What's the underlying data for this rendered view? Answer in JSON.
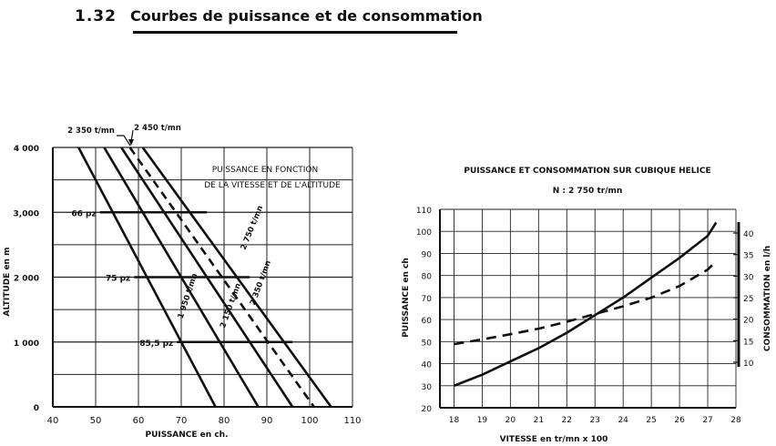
{
  "header": {
    "section_number": "1.32",
    "title": "Courbes de puissance et de consommation"
  },
  "chart_data": [
    {
      "type": "line",
      "title_lines": [
        "PUISSANCE EN FONCTION",
        "DE LA VITESSE ET DE L'ALTITUDE"
      ],
      "xlabel": "PUISSANCE en ch.",
      "ylabel": "ALTITUDE en m",
      "xlim": [
        40,
        110
      ],
      "ylim": [
        0,
        4000
      ],
      "x_ticks": [
        40,
        50,
        60,
        70,
        80,
        90,
        100,
        110
      ],
      "y_ticks": [
        0,
        1000,
        2000,
        3000,
        4000
      ],
      "y_tick_labels": [
        "0",
        "1 000",
        "2 000",
        "3,000",
        "4 000"
      ],
      "grid": true,
      "series": [
        {
          "name": "1 950 t/mn",
          "style": "solid",
          "points": [
            [
              46,
              4000
            ],
            [
              78,
              0
            ]
          ]
        },
        {
          "name": "2 150 t/mn",
          "style": "solid",
          "points": [
            [
              52,
              4000
            ],
            [
              88,
              0
            ]
          ]
        },
        {
          "name": "2 350 t/mn",
          "style": "solid",
          "points": [
            [
              56,
              4000
            ],
            [
              96,
              0
            ]
          ]
        },
        {
          "name": "2 450 t/mn",
          "style": "dashed",
          "points": [
            [
              58,
              4000
            ],
            [
              101,
              0
            ]
          ]
        },
        {
          "name": "2 750 t/mn",
          "style": "solid",
          "points": [
            [
              61,
              4000
            ],
            [
              105,
              0
            ]
          ]
        }
      ],
      "manifold_pressures": [
        {
          "label": "66 pz",
          "altitude": 3000,
          "x_range": [
            51,
            76
          ]
        },
        {
          "label": "75 pz",
          "altitude": 2000,
          "x_range": [
            59,
            86
          ]
        },
        {
          "label": "85,5 pz",
          "altitude": 1000,
          "x_range": [
            69,
            96
          ]
        }
      ],
      "top_labels": [
        {
          "text": "2 350 t/mn"
        },
        {
          "text": "2 450 t/mn"
        }
      ]
    },
    {
      "type": "line",
      "title": "PUISSANCE ET CONSOMMATION SUR CUBIQUE HELICE",
      "subtitle": "N : 2 750 tr/mn",
      "xlabel": "VITESSE en tr/mn x 100",
      "ylabel": "PUISSANCE en ch",
      "y2label": "CONSOMMATION en l/h",
      "xlim": [
        17.5,
        28
      ],
      "ylim": [
        20,
        110
      ],
      "y2lim": [
        7,
        43
      ],
      "x_ticks": [
        18,
        19,
        20,
        21,
        22,
        23,
        24,
        25,
        26,
        27,
        28
      ],
      "y_ticks": [
        20,
        30,
        40,
        50,
        60,
        70,
        80,
        90,
        100,
        110
      ],
      "y2_ticks": [
        10,
        15,
        20,
        25,
        30,
        35,
        40
      ],
      "grid": true,
      "series": [
        {
          "name": "Puissance",
          "axis": "left",
          "style": "solid",
          "x": [
            18,
            19,
            20,
            21,
            22,
            23,
            24,
            25,
            26,
            27,
            27.3
          ],
          "y": [
            30,
            35,
            41,
            47,
            54,
            62,
            70,
            79,
            88,
            98,
            104
          ]
        },
        {
          "name": "Consommation",
          "axis": "right",
          "style": "dashed",
          "x": [
            18,
            19,
            20,
            21,
            22,
            23,
            24,
            25,
            26,
            27,
            27.3
          ],
          "y": [
            14.2,
            15.3,
            16.5,
            17.8,
            19.4,
            21.2,
            23.0,
            25.0,
            27.7,
            31.5,
            33.5
          ]
        }
      ]
    }
  ]
}
